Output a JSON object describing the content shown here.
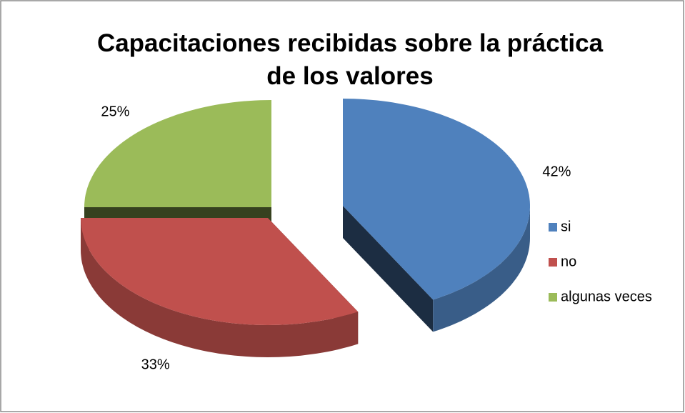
{
  "chart_data": {
    "type": "pie",
    "title": "Capacitaciones recibidas sobre la práctica de los valores",
    "categories": [
      "si",
      "no",
      "algunas veces"
    ],
    "values": [
      42,
      33,
      25
    ],
    "value_labels": [
      "42%",
      "33%",
      "25%"
    ],
    "colors": [
      "#4f81bd",
      "#c0504d",
      "#9bbb59"
    ],
    "legend": "right"
  }
}
